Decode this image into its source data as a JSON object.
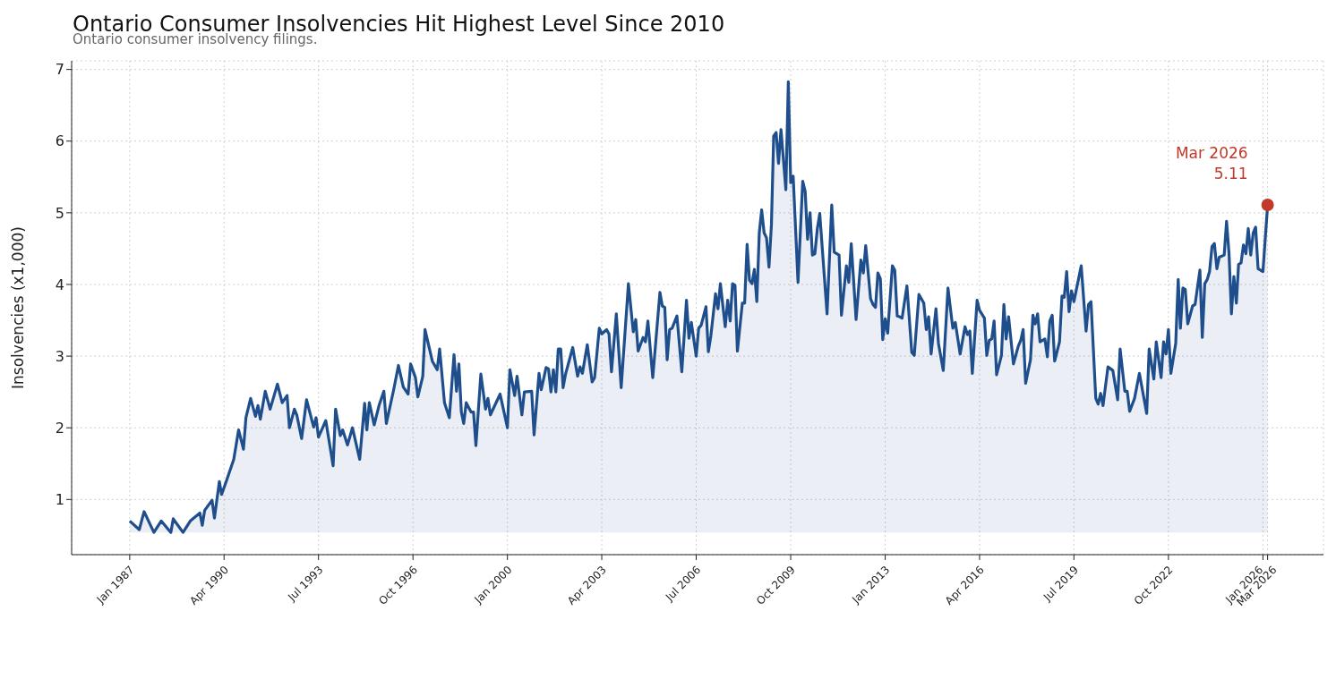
{
  "chart_data": {
    "type": "area",
    "title": "Ontario Consumer Insolvencies Hit Highest Level Since 2010",
    "subtitle": "Ontario consumer insolvency filings.",
    "ylabel": "Insolvencies (x1,000)",
    "x": [
      "1987-01",
      "1987-05",
      "1987-07",
      "1987-11",
      "1988-02",
      "1988-06",
      "1988-07",
      "1988-11",
      "1989-02",
      "1989-06",
      "1989-07",
      "1989-08",
      "1989-11",
      "1989-12",
      "1990-02",
      "1990-03",
      "1990-05",
      "1990-08",
      "1990-10",
      "1990-12",
      "1991-01",
      "1991-03",
      "1991-05",
      "1991-06",
      "1991-07",
      "1991-09",
      "1991-11",
      "1992-02",
      "1992-04",
      "1992-06",
      "1992-07",
      "1992-09",
      "1992-10",
      "1992-12",
      "1993-02",
      "1993-05",
      "1993-06",
      "1993-07",
      "1993-10",
      "1994-01",
      "1994-02",
      "1994-04",
      "1994-05",
      "1994-07",
      "1994-09",
      "1994-12",
      "1995-02",
      "1995-03",
      "1995-04",
      "1995-06",
      "1995-08",
      "1995-10",
      "1995-11",
      "1996-02",
      "1996-04",
      "1996-06",
      "1996-08",
      "1996-09",
      "1996-11",
      "1996-12",
      "1997-02",
      "1997-03",
      "1997-06",
      "1997-08",
      "1997-09",
      "1997-11",
      "1998-01",
      "1998-03",
      "1998-04",
      "1998-05",
      "1998-06",
      "1998-07",
      "1998-08",
      "1998-10",
      "1998-11",
      "1998-12",
      "1999-02",
      "1999-04",
      "1999-05",
      "1999-06",
      "1999-10",
      "2000-01",
      "2000-02",
      "2000-04",
      "2000-05",
      "2000-07",
      "2000-08",
      "2000-11",
      "2000-12",
      "2001-02",
      "2001-03",
      "2001-05",
      "2001-06",
      "2001-07",
      "2001-08",
      "2001-09",
      "2001-10",
      "2001-11",
      "2001-12",
      "2002-01",
      "2002-04",
      "2002-06",
      "2002-07",
      "2002-08",
      "2002-10",
      "2002-12",
      "2003-01",
      "2003-03",
      "2003-04",
      "2003-06",
      "2003-07",
      "2003-08",
      "2003-10",
      "2003-12",
      "2004-03",
      "2004-05",
      "2004-06",
      "2004-07",
      "2004-09",
      "2004-10",
      "2004-11",
      "2005-01",
      "2005-04",
      "2005-05",
      "2005-06",
      "2005-07",
      "2005-08",
      "2005-09",
      "2005-11",
      "2006-01",
      "2006-03",
      "2006-04",
      "2006-05",
      "2006-07",
      "2006-08",
      "2006-09",
      "2006-11",
      "2006-12",
      "2007-01",
      "2007-03",
      "2007-04",
      "2007-05",
      "2007-07",
      "2007-08",
      "2007-09",
      "2007-10",
      "2007-11",
      "2007-12",
      "2008-02",
      "2008-03",
      "2008-04",
      "2008-05",
      "2008-06",
      "2008-07",
      "2008-08",
      "2008-09",
      "2008-10",
      "2008-11",
      "2008-12",
      "2009-01",
      "2009-02",
      "2009-03",
      "2009-04",
      "2009-05",
      "2009-06",
      "2009-08",
      "2009-09",
      "2009-10",
      "2009-11",
      "2010-01",
      "2010-03",
      "2010-04",
      "2010-05",
      "2010-06",
      "2010-07",
      "2010-08",
      "2010-09",
      "2010-10",
      "2011-01",
      "2011-03",
      "2011-04",
      "2011-06",
      "2011-07",
      "2011-09",
      "2011-10",
      "2011-11",
      "2012-01",
      "2012-03",
      "2012-04",
      "2012-05",
      "2012-07",
      "2012-08",
      "2012-09",
      "2012-10",
      "2012-11",
      "2012-12",
      "2013-01",
      "2013-02",
      "2013-04",
      "2013-05",
      "2013-06",
      "2013-07",
      "2013-08",
      "2013-10",
      "2013-12",
      "2014-01",
      "2014-03",
      "2014-05",
      "2014-06",
      "2014-07",
      "2014-08",
      "2014-10",
      "2014-11",
      "2015-01",
      "2015-03",
      "2015-05",
      "2015-06",
      "2015-08",
      "2015-10",
      "2015-11",
      "2015-12",
      "2016-01",
      "2016-03",
      "2016-04",
      "2016-06",
      "2016-07",
      "2016-08",
      "2016-09",
      "2016-10",
      "2016-11",
      "2017-01",
      "2017-02",
      "2017-03",
      "2017-04",
      "2017-06",
      "2017-08",
      "2017-09",
      "2017-10",
      "2017-11",
      "2018-01",
      "2018-02",
      "2018-03",
      "2018-04",
      "2018-05",
      "2018-07",
      "2018-08",
      "2018-09",
      "2018-10",
      "2018-11",
      "2019-01",
      "2019-02",
      "2019-03",
      "2019-04",
      "2019-05",
      "2019-06",
      "2019-07",
      "2019-10",
      "2019-12",
      "2020-01",
      "2020-02",
      "2020-04",
      "2020-05",
      "2020-06",
      "2020-07",
      "2020-09",
      "2020-11",
      "2021-01",
      "2021-02",
      "2021-04",
      "2021-05",
      "2021-06",
      "2021-08",
      "2021-10",
      "2022-01",
      "2022-02",
      "2022-04",
      "2022-05",
      "2022-07",
      "2022-08",
      "2022-09",
      "2022-10",
      "2022-11",
      "2023-01",
      "2023-02",
      "2023-03",
      "2023-04",
      "2023-05",
      "2023-06",
      "2023-08",
      "2023-09",
      "2023-11",
      "2023-12",
      "2024-01",
      "2024-02",
      "2024-03",
      "2024-04",
      "2024-05",
      "2024-06",
      "2024-07",
      "2024-09",
      "2024-10",
      "2024-11",
      "2024-12",
      "2025-01",
      "2025-02",
      "2025-03",
      "2025-04",
      "2025-05",
      "2025-06",
      "2025-07",
      "2025-08",
      "2025-09",
      "2025-10",
      "2025-11",
      "2026-01",
      "2026-03"
    ],
    "series": [
      {
        "color": "#1f4e8c",
        "values": [
          0.7,
          0.58,
          0.83,
          0.54,
          0.7,
          0.54,
          0.73,
          0.54,
          0.7,
          0.81,
          0.64,
          0.85,
          0.99,
          0.74,
          1.25,
          1.07,
          1.26,
          1.56,
          1.97,
          1.7,
          2.14,
          2.41,
          2.16,
          2.31,
          2.12,
          2.51,
          2.26,
          2.61,
          2.35,
          2.45,
          2.0,
          2.26,
          2.18,
          1.85,
          2.39,
          2.01,
          2.14,
          1.87,
          2.1,
          1.47,
          2.26,
          1.89,
          1.97,
          1.76,
          2.0,
          1.56,
          2.34,
          1.97,
          2.35,
          2.04,
          2.31,
          2.51,
          2.06,
          2.53,
          2.87,
          2.57,
          2.47,
          2.89,
          2.7,
          2.43,
          2.72,
          3.37,
          2.93,
          2.81,
          3.1,
          2.35,
          2.14,
          3.02,
          2.51,
          2.89,
          2.22,
          2.06,
          2.35,
          2.22,
          2.22,
          1.75,
          2.75,
          2.26,
          2.41,
          2.18,
          2.47,
          2.0,
          2.81,
          2.45,
          2.72,
          2.18,
          2.5,
          2.51,
          1.9,
          2.76,
          2.53,
          2.84,
          2.82,
          2.5,
          2.81,
          2.5,
          3.1,
          3.1,
          2.56,
          2.75,
          3.12,
          2.72,
          2.85,
          2.76,
          3.16,
          2.64,
          2.7,
          3.39,
          3.31,
          3.37,
          3.31,
          2.78,
          3.59,
          2.56,
          4.01,
          3.34,
          3.51,
          3.07,
          3.26,
          3.2,
          3.49,
          2.7,
          3.89,
          3.7,
          3.68,
          2.95,
          3.37,
          3.39,
          3.56,
          2.78,
          3.78,
          3.25,
          3.47,
          3.0,
          3.39,
          3.43,
          3.69,
          3.06,
          3.28,
          3.87,
          3.66,
          4.01,
          3.41,
          3.78,
          3.49,
          4.01,
          3.99,
          3.07,
          3.74,
          3.74,
          4.56,
          4.06,
          4.01,
          4.21,
          3.76,
          4.72,
          5.04,
          4.72,
          4.65,
          4.24,
          4.84,
          6.07,
          6.12,
          5.69,
          6.16,
          5.32,
          6.83,
          5.42,
          5.51,
          4.03,
          5.44,
          5.3,
          4.63,
          5.0,
          4.41,
          4.43,
          4.78,
          4.99,
          3.59,
          5.11,
          4.45,
          4.41,
          3.57,
          4.26,
          4.03,
          4.57,
          3.51,
          4.34,
          4.16,
          4.54,
          3.8,
          3.72,
          3.68,
          4.16,
          4.08,
          3.23,
          3.52,
          3.32,
          4.26,
          4.2,
          3.56,
          3.55,
          3.53,
          3.98,
          3.05,
          3.01,
          3.86,
          3.74,
          3.37,
          3.55,
          3.03,
          3.66,
          3.18,
          2.8,
          3.95,
          3.39,
          3.47,
          3.03,
          3.41,
          3.3,
          3.35,
          2.76,
          3.78,
          3.64,
          3.53,
          3.01,
          3.22,
          3.24,
          3.49,
          2.74,
          3.01,
          3.72,
          3.24,
          3.55,
          2.89,
          3.14,
          3.22,
          3.37,
          2.62,
          2.95,
          3.57,
          3.45,
          3.59,
          3.2,
          3.24,
          2.99,
          3.49,
          3.57,
          2.93,
          3.2,
          3.84,
          3.82,
          4.18,
          3.62,
          3.91,
          3.76,
          4.26,
          3.35,
          3.72,
          3.76,
          2.41,
          2.33,
          2.48,
          2.31,
          2.85,
          2.8,
          2.39,
          3.1,
          2.51,
          2.51,
          2.23,
          2.41,
          2.76,
          2.2,
          3.1,
          2.68,
          3.2,
          2.7,
          3.2,
          3.03,
          3.37,
          2.76,
          3.18,
          4.07,
          3.39,
          3.95,
          3.93,
          3.45,
          3.7,
          3.72,
          4.2,
          3.26,
          4.01,
          4.07,
          4.18,
          4.53,
          4.57,
          4.22,
          4.38,
          4.41,
          4.88,
          4.43,
          3.59,
          4.11,
          3.74,
          4.28,
          4.3,
          4.55,
          4.43,
          4.78,
          4.41,
          4.72,
          4.8,
          4.22,
          4.18,
          5.11
        ]
      }
    ],
    "xlim": [
      "1985-01",
      "2028-02"
    ],
    "xticks": [
      {
        "value": "1987-01",
        "label": "Jan 1987"
      },
      {
        "value": "1990-04",
        "label": "Apr 1990"
      },
      {
        "value": "1993-07",
        "label": "Jul 1993"
      },
      {
        "value": "1996-10",
        "label": "Oct 1996"
      },
      {
        "value": "2000-01",
        "label": "Jan 2000"
      },
      {
        "value": "2003-04",
        "label": "Apr 2003"
      },
      {
        "value": "2006-07",
        "label": "Jul 2006"
      },
      {
        "value": "2009-10",
        "label": "Oct 2009"
      },
      {
        "value": "2013-01",
        "label": "Jan 2013"
      },
      {
        "value": "2016-04",
        "label": "Apr 2016"
      },
      {
        "value": "2019-07",
        "label": "Jul 2019"
      },
      {
        "value": "2022-10",
        "label": "Oct 2022"
      },
      {
        "value": "2026-01",
        "label": "Jan 2026"
      },
      {
        "value": "2026-03",
        "label": "Mar 2026"
      }
    ],
    "ylim": [
      0.23,
      7.12
    ],
    "yticks": [
      1,
      2,
      3,
      4,
      5,
      6,
      7
    ],
    "annotations": [
      {
        "text": "Mar 2026\n5.11",
        "x": "2026-03",
        "y": 5.11
      }
    ],
    "grid": true,
    "legend": false,
    "marker": "none",
    "line_style": "solid"
  }
}
